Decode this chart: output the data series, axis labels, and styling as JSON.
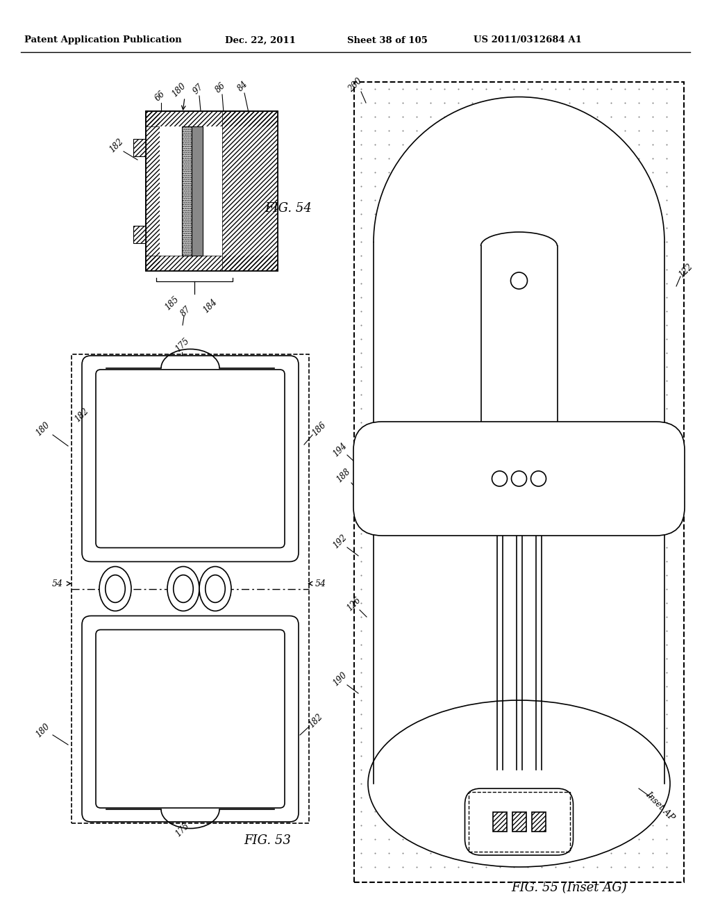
{
  "header_left": "Patent Application Publication",
  "header_mid": "Dec. 22, 2011",
  "header_right": "Sheet 38 of 105",
  "header_patent": "US 2011/0312684 A1",
  "fig54_label": "FIG. 54",
  "fig53_label": "FIG. 53",
  "fig55_label": "FIG. 55 (Inset AG)",
  "inset_ap_label": "Inset AP",
  "bg": "#ffffff",
  "lc": "#000000",
  "dot_color": "#aaaaaa"
}
